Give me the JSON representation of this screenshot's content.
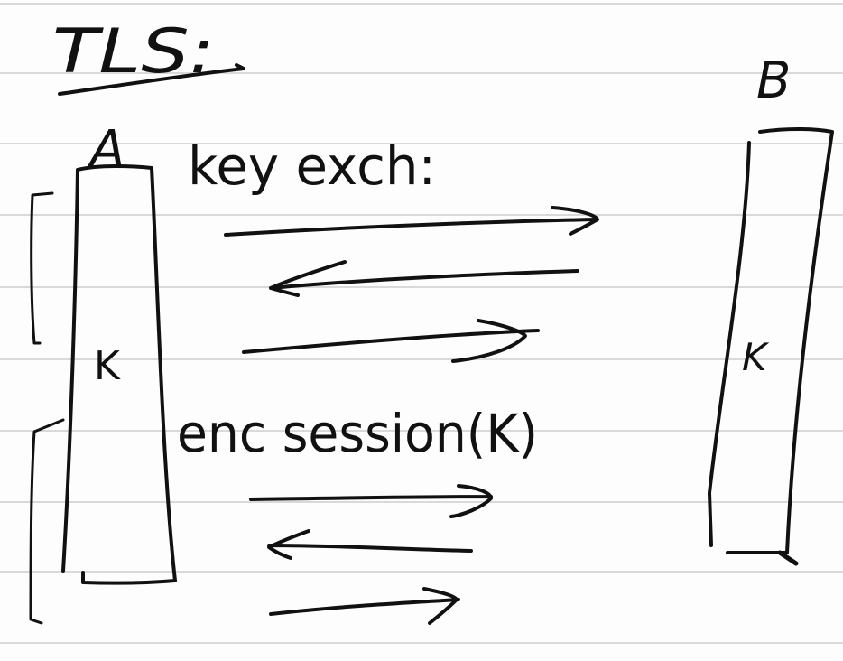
{
  "heading": "TLS:",
  "party_a": "A",
  "party_b": "B",
  "key_exchange_label": "key exch:",
  "session_label": "enc session(K)",
  "key_a": "K",
  "key_b": "K",
  "colors": {
    "ink": "#111111",
    "rule_line": "#d9d9d9",
    "paper": "#fdfdfd"
  }
}
